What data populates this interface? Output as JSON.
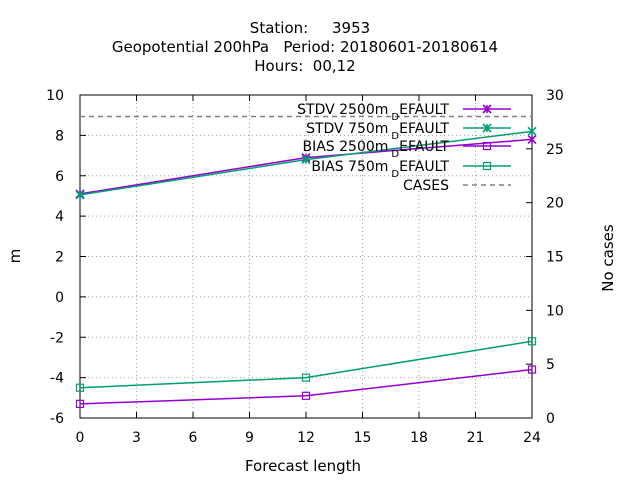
{
  "chart_data": {
    "type": "line",
    "title_lines": [
      "Station:     3953",
      "Geopotential 200hPa   Period: 20180601-20180614",
      "Hours:  00,12"
    ],
    "xlabel": "Forecast length",
    "ylabel": "m",
    "y2label": "No cases",
    "xlim": [
      0,
      24
    ],
    "ylim": [
      -6,
      10
    ],
    "y2lim": [
      0,
      30
    ],
    "x_ticks": [
      0,
      3,
      6,
      9,
      12,
      15,
      18,
      21,
      24
    ],
    "y_ticks": [
      -6,
      -4,
      -2,
      0,
      2,
      4,
      6,
      8,
      10
    ],
    "y2_ticks": [
      0,
      5,
      10,
      15,
      20,
      25,
      30
    ],
    "grid": true,
    "legend_position": "top-right",
    "series": [
      {
        "name": "STDV 2500m",
        "name_sub": "D",
        "name_suffix": "EFAULT",
        "axis": "y",
        "marker": "asterisk",
        "color": "#9400d3",
        "x": [
          0,
          12,
          24
        ],
        "values": [
          5.1,
          6.9,
          7.8
        ]
      },
      {
        "name": "STDV 750m",
        "name_sub": "D",
        "name_suffix": "EFAULT",
        "axis": "y",
        "marker": "asterisk",
        "color": "#009e73",
        "x": [
          0,
          12,
          24
        ],
        "values": [
          5.05,
          6.8,
          8.2
        ]
      },
      {
        "name": "BIAS 2500m",
        "name_sub": "D",
        "name_suffix": "EFAULT",
        "axis": "y",
        "marker": "square",
        "color": "#9400d3",
        "x": [
          0,
          12,
          24
        ],
        "values": [
          -5.3,
          -4.9,
          -3.6
        ]
      },
      {
        "name": "BIAS 750m",
        "name_sub": "D",
        "name_suffix": "EFAULT",
        "axis": "y",
        "marker": "square",
        "color": "#009e73",
        "x": [
          0,
          12,
          24
        ],
        "values": [
          -4.5,
          -4.0,
          -2.2
        ]
      },
      {
        "name": "CASES",
        "name_sub": "",
        "name_suffix": "",
        "axis": "y2",
        "marker": "none",
        "color": "#808080",
        "dashed": true,
        "x": [
          0,
          12,
          24
        ],
        "values": [
          28,
          28,
          28
        ]
      }
    ]
  }
}
